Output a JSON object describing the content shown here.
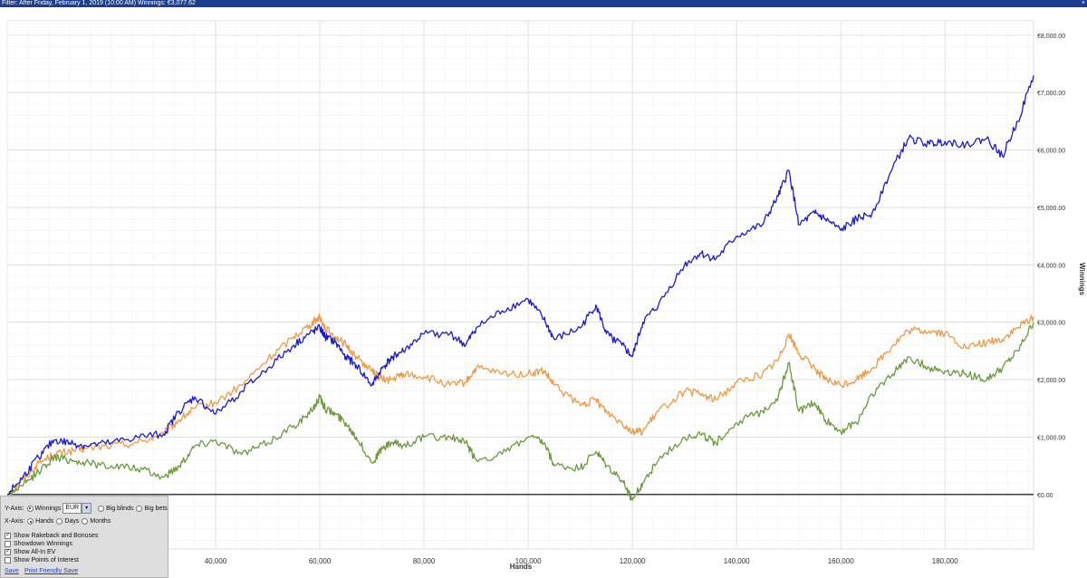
{
  "header": {
    "filter_text": "Filter: After Friday, February 1, 2019 (10:00 AM) Winnings: €3,077.62",
    "close_glyph": "×"
  },
  "chart_data": {
    "type": "line",
    "xlabel": "Hands",
    "ylabel": "Winnings",
    "x_ticks": [
      40000,
      60000,
      80000,
      100000,
      120000,
      140000,
      160000,
      180000
    ],
    "x_tick_labels": [
      "40,000",
      "60,000",
      "80,000",
      "100,000",
      "120,000",
      "140,000",
      "160,000",
      "180,000"
    ],
    "y_ticks": [
      0,
      1000,
      2000,
      3000,
      4000,
      5000,
      6000,
      7000,
      8000
    ],
    "y_tick_labels": [
      "€0.00",
      "€1,000.00",
      "€2,000.00",
      "€3,000.00",
      "€4,000.00",
      "€5,000.00",
      "€6,000.00",
      "€7,000.00",
      "€8,000.00"
    ],
    "xlim": [
      0,
      197000
    ],
    "ylim": [
      -950,
      8250
    ],
    "grid": true,
    "series": [
      {
        "color": "#ee9a45",
        "x": [
          0,
          3000,
          6000,
          9000,
          12000,
          15000,
          20000,
          25000,
          30000,
          33000,
          36000,
          40000,
          45000,
          50000,
          55000,
          58000,
          60000,
          61000,
          63000,
          65000,
          67000,
          70000,
          72000,
          74000,
          76000,
          80000,
          85000,
          88000,
          90000,
          95000,
          100000,
          103000,
          105000,
          110000,
          113000,
          115000,
          118000,
          120000,
          122000,
          125000,
          130000,
          133000,
          136000,
          140000,
          145000,
          148000,
          150000,
          152000,
          155000,
          157000,
          160000,
          163000,
          166000,
          170000,
          173000,
          177000,
          180000,
          184000,
          188000,
          191000,
          194000,
          197000
        ],
        "y": [
          0,
          250,
          550,
          700,
          750,
          800,
          850,
          900,
          1050,
          1300,
          1500,
          1600,
          1900,
          2350,
          2750,
          2950,
          3100,
          2900,
          2750,
          2600,
          2400,
          2150,
          2000,
          2000,
          2100,
          2050,
          1900,
          1950,
          2200,
          2100,
          2100,
          2150,
          1900,
          1550,
          1650,
          1450,
          1250,
          1100,
          1100,
          1450,
          1800,
          1750,
          1650,
          1950,
          2100,
          2350,
          2800,
          2450,
          2200,
          2000,
          1900,
          2000,
          2200,
          2600,
          2850,
          2850,
          2800,
          2550,
          2650,
          2700,
          2900,
          3100
        ]
      },
      {
        "color": "#6b9a3d",
        "x": [
          0,
          3000,
          6000,
          9000,
          12000,
          15000,
          20000,
          25000,
          30000,
          33000,
          36000,
          40000,
          45000,
          50000,
          55000,
          58000,
          60000,
          61000,
          63000,
          65000,
          67000,
          70000,
          72000,
          74000,
          76000,
          80000,
          85000,
          88000,
          90000,
          95000,
          100000,
          103000,
          105000,
          110000,
          113000,
          115000,
          118000,
          120000,
          122000,
          125000,
          130000,
          133000,
          136000,
          140000,
          145000,
          148000,
          150000,
          152000,
          155000,
          157000,
          160000,
          163000,
          166000,
          170000,
          173000,
          177000,
          180000,
          184000,
          188000,
          191000,
          194000,
          197000
        ],
        "y": [
          0,
          150,
          400,
          650,
          600,
          550,
          500,
          450,
          300,
          500,
          850,
          950,
          700,
          900,
          1200,
          1400,
          1700,
          1500,
          1400,
          1250,
          1000,
          550,
          800,
          900,
          850,
          1000,
          1000,
          900,
          600,
          700,
          1000,
          900,
          500,
          450,
          750,
          500,
          250,
          -100,
          200,
          600,
          1000,
          1050,
          900,
          1250,
          1450,
          1700,
          2300,
          1450,
          1600,
          1300,
          1100,
          1250,
          1750,
          2100,
          2400,
          2200,
          2150,
          2100,
          2000,
          2200,
          2500,
          3000
        ]
      },
      {
        "color": "#1a1ad0",
        "x": [
          0,
          3000,
          6000,
          9000,
          12000,
          15000,
          20000,
          25000,
          30000,
          33000,
          36000,
          40000,
          45000,
          50000,
          55000,
          58000,
          60000,
          61000,
          63000,
          65000,
          67000,
          70000,
          72000,
          74000,
          76000,
          80000,
          85000,
          88000,
          90000,
          95000,
          100000,
          103000,
          105000,
          110000,
          113000,
          115000,
          118000,
          120000,
          122000,
          125000,
          130000,
          133000,
          136000,
          140000,
          145000,
          148000,
          150000,
          152000,
          155000,
          157000,
          160000,
          163000,
          166000,
          170000,
          173000,
          177000,
          180000,
          184000,
          188000,
          191000,
          194000,
          197000
        ],
        "y": [
          0,
          300,
          650,
          950,
          900,
          850,
          900,
          1000,
          1050,
          1450,
          1700,
          1400,
          1800,
          2200,
          2600,
          2800,
          2900,
          2750,
          2650,
          2400,
          2250,
          1900,
          2200,
          2400,
          2500,
          2800,
          2800,
          2600,
          2900,
          3200,
          3400,
          3050,
          2700,
          2900,
          3300,
          2800,
          2600,
          2400,
          3000,
          3300,
          4000,
          4200,
          4100,
          4500,
          4700,
          5200,
          5650,
          4700,
          4900,
          4800,
          4600,
          4800,
          4900,
          5700,
          6200,
          6100,
          6150,
          6100,
          6200,
          5900,
          6500,
          7300
        ]
      }
    ]
  },
  "controls": {
    "yaxis_label": "Y-Axis:",
    "winnings": "Winnings",
    "currency": "EUR",
    "big_blinds": "Big blinds",
    "big_bets": "Big bets",
    "xaxis_label": "X-Axis:",
    "hands": "Hands",
    "days": "Days",
    "months": "Months",
    "show_rakeback": "Show Rakeback and Bonuses",
    "showdown_winnings": "Showdown Winnings",
    "show_allin_ev": "Show All-In EV",
    "show_poi": "Show Points of Interest",
    "check_glyph": "✓",
    "arrow_glyph": "▾",
    "save": "Save",
    "print_save": "Print Friendly Save"
  }
}
